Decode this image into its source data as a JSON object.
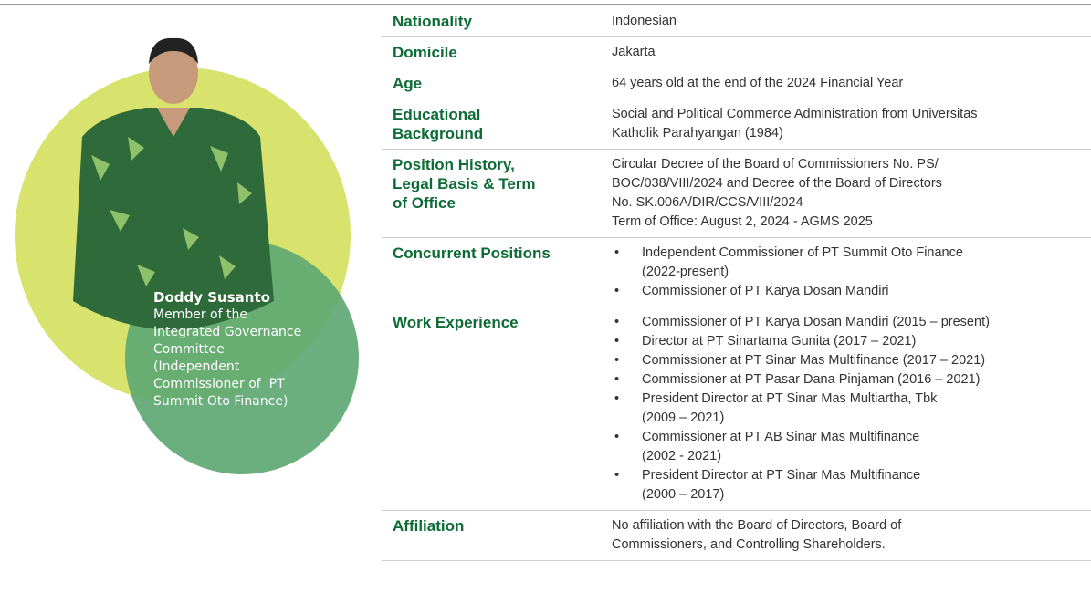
{
  "profile": {
    "name": "Doddy Susanto",
    "role_lines": [
      "Member of the",
      "Integrated Governance",
      "Committee",
      "(Independent",
      "Commissioner of  PT",
      "Summit Oto Finance)"
    ]
  },
  "table": {
    "rows": [
      {
        "label": [
          "Nationality"
        ],
        "value": [
          "Indonesian"
        ]
      },
      {
        "label": [
          "Domicile"
        ],
        "value": [
          "Jakarta"
        ]
      },
      {
        "label": [
          "Age"
        ],
        "value": [
          "64 years old at the end of the 2024 Financial Year"
        ]
      },
      {
        "label": [
          "Educational",
          "Background"
        ],
        "value": [
          "Social and Political Commerce Administration from Universitas",
          "Katholik Parahyangan (1984)"
        ]
      },
      {
        "label": [
          "Position History,",
          "Legal Basis & Term",
          "of Office"
        ],
        "value": [
          "Circular Decree of the Board of Commissioners No. PS/",
          "BOC/038/VIII/2024 and Decree of the Board of Directors",
          "No. SK.006A/DIR/CCS/VIII/2024",
          "Term of Office: August 2, 2024 - AGMS 2025"
        ]
      },
      {
        "label": [
          "Concurrent Positions"
        ],
        "items": [
          [
            "Independent Commissioner of PT Summit Oto Finance",
            "(2022-present)"
          ],
          [
            "Commissioner of PT Karya Dosan Mandiri"
          ]
        ]
      },
      {
        "label": [
          "Work Experience"
        ],
        "items": [
          [
            "Commissioner of PT Karya Dosan Mandiri (2015 – present)"
          ],
          [
            "Director at PT Sinartama Gunita (2017 – 2021)"
          ],
          [
            "Commissioner at PT Sinar Mas Multifinance (2017 – 2021)"
          ],
          [
            "Commissioner at PT Pasar Dana Pinjaman (2016 – 2021)"
          ],
          [
            "President Director at PT Sinar Mas Multiartha, Tbk",
            "(2009 – 2021)"
          ],
          [
            "Commissioner at PT AB Sinar Mas Multifinance",
            "(2002 - 2021)"
          ],
          [
            "President Director at PT Sinar Mas Multifinance",
            "(2000 – 2017)"
          ]
        ]
      },
      {
        "label": [
          "Affiliation"
        ],
        "value": [
          "No affiliation with the Board of Directors, Board of",
          "Commissioners, and Controlling Shareholders."
        ]
      }
    ]
  }
}
